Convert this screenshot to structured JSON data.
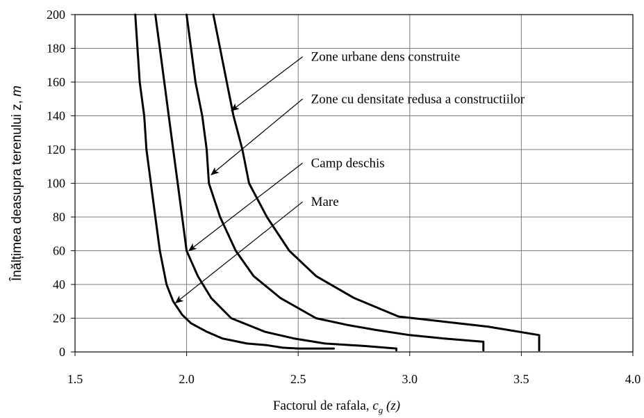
{
  "chart_data": {
    "type": "line",
    "title": "",
    "xlabel": "Factorul de rafala, c g (z)",
    "xlabel_parts": {
      "main": "Factorul de rafala, ",
      "var": "c",
      "sub": "g",
      "tail": " (z)"
    },
    "ylabel": "Înălțimea deasupra terenului z, m",
    "ylabel_parts": {
      "main": "Înălțimea deasupra terenului z, ",
      "unit": "m"
    },
    "xlim": [
      1.5,
      4.0
    ],
    "ylim": [
      0,
      200
    ],
    "xticks": [
      "1.5",
      "2.0",
      "2.5",
      "3.0",
      "3.5",
      "4.0"
    ],
    "yticks": [
      "0",
      "20",
      "40",
      "60",
      "80",
      "100",
      "120",
      "140",
      "160",
      "180",
      "200"
    ],
    "grid": true,
    "legend": "none",
    "series": [
      {
        "name": "Mare",
        "points": [
          [
            1.77,
            200
          ],
          [
            1.78,
            180
          ],
          [
            1.79,
            160
          ],
          [
            1.81,
            140
          ],
          [
            1.82,
            120
          ],
          [
            1.84,
            100
          ],
          [
            1.86,
            80
          ],
          [
            1.88,
            60
          ],
          [
            1.91,
            40
          ],
          [
            1.94,
            30
          ],
          [
            1.98,
            22
          ],
          [
            2.02,
            17
          ],
          [
            2.09,
            12
          ],
          [
            2.16,
            8
          ],
          [
            2.27,
            5
          ],
          [
            2.36,
            4
          ],
          [
            2.43,
            2.5
          ],
          [
            2.5,
            2
          ],
          [
            2.66,
            2
          ]
        ]
      },
      {
        "name": "Camp deschis",
        "points": [
          [
            1.86,
            200
          ],
          [
            1.88,
            180
          ],
          [
            1.9,
            160
          ],
          [
            1.92,
            140
          ],
          [
            1.94,
            120
          ],
          [
            1.96,
            100
          ],
          [
            1.98,
            80
          ],
          [
            2.0,
            60
          ],
          [
            2.05,
            45
          ],
          [
            2.11,
            32
          ],
          [
            2.2,
            20
          ],
          [
            2.35,
            12
          ],
          [
            2.48,
            8
          ],
          [
            2.62,
            5
          ],
          [
            2.8,
            3.5
          ],
          [
            2.94,
            2
          ],
          [
            2.94,
            1
          ]
        ]
      },
      {
        "name": "Zone cu densitate redusa a constructiilor",
        "points": [
          [
            2.0,
            200
          ],
          [
            2.02,
            180
          ],
          [
            2.04,
            160
          ],
          [
            2.07,
            140
          ],
          [
            2.09,
            120
          ],
          [
            2.1,
            100
          ],
          [
            2.15,
            80
          ],
          [
            2.22,
            60
          ],
          [
            2.3,
            45
          ],
          [
            2.42,
            32
          ],
          [
            2.58,
            20
          ],
          [
            2.72,
            16
          ],
          [
            2.85,
            13
          ],
          [
            3.0,
            10
          ],
          [
            3.15,
            8
          ],
          [
            3.33,
            6
          ],
          [
            3.33,
            1
          ]
        ]
      },
      {
        "name": "Zone urbane dens construite",
        "points": [
          [
            2.12,
            200
          ],
          [
            2.15,
            180
          ],
          [
            2.18,
            160
          ],
          [
            2.21,
            140
          ],
          [
            2.25,
            120
          ],
          [
            2.28,
            100
          ],
          [
            2.36,
            80
          ],
          [
            2.46,
            60
          ],
          [
            2.58,
            45
          ],
          [
            2.75,
            32
          ],
          [
            2.95,
            21
          ],
          [
            3.15,
            18
          ],
          [
            3.35,
            15
          ],
          [
            3.58,
            10
          ],
          [
            3.58,
            1
          ]
        ]
      }
    ],
    "annotations": [
      {
        "text": "Zone urbane dens construite",
        "target": "Zone urbane dens construite",
        "point": [
          2.2,
          143
        ],
        "from": [
          2.52,
          175
        ]
      },
      {
        "text": "Zone cu densitate redusa a constructiilor",
        "target": "Zone cu densitate redusa a constructiilor",
        "point": [
          2.11,
          105
        ],
        "from": [
          2.52,
          150
        ]
      },
      {
        "text": "Camp deschis",
        "target": "Camp deschis",
        "point": [
          2.01,
          60
        ],
        "from": [
          2.52,
          112
        ]
      },
      {
        "text": "Mare",
        "target": "Mare",
        "point": [
          1.95,
          29
        ],
        "from": [
          2.52,
          89
        ]
      }
    ],
    "colors": {
      "line": "#000000",
      "grid": "#7a7a7a",
      "frame": "#000000"
    }
  }
}
